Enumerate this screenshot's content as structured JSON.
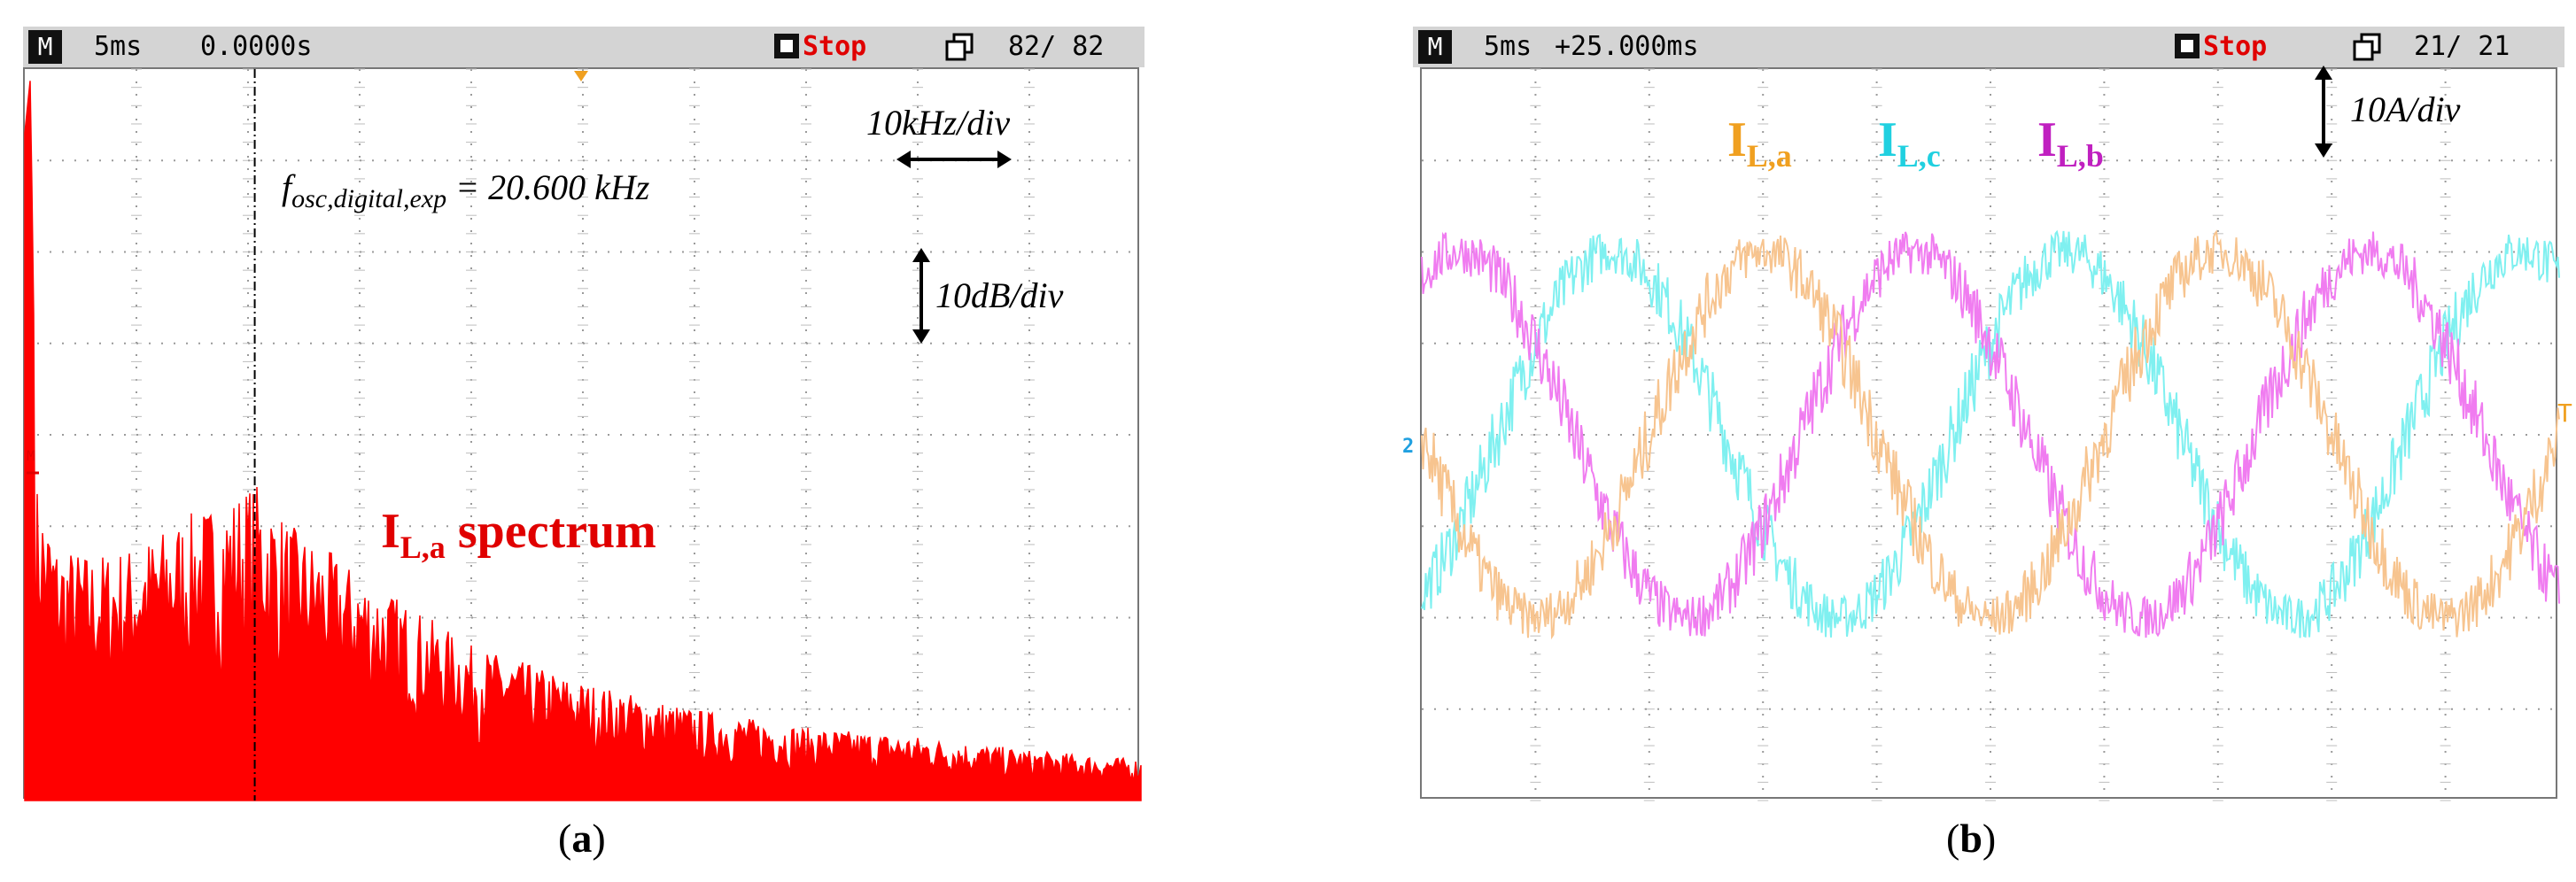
{
  "panel_a": {
    "status": {
      "m_label": "M",
      "timebase": "5ms",
      "time": "0.0000s",
      "stop": "Stop",
      "count": "82/ 82"
    },
    "scale_x": "10kHz/div",
    "scale_y": "10dB/div",
    "freq_prefix": "f",
    "freq_sub": "osc,digital,exp",
    "freq_value": "= 20.600 kHz",
    "label_main": "I",
    "label_sub": "L,a",
    "label_suffix": " spectrum",
    "caption_open": "(",
    "caption_letter": "a",
    "caption_close": ")"
  },
  "panel_b": {
    "status": {
      "m_label": "M",
      "timebase": "5ms",
      "time": "+25.000ms",
      "stop": "Stop",
      "count": "21/ 21"
    },
    "scale_y": "10A/div",
    "label_a_main": "I",
    "label_a_sub": "L,a",
    "label_c_main": "I",
    "label_c_sub": "L,c",
    "label_b_main": "I",
    "label_b_sub": "L,b",
    "ch_marker": "2",
    "trig_marker": "T",
    "caption_open": "(",
    "caption_letter": "b",
    "caption_close": ")"
  },
  "colors": {
    "spectrum": "#ff0000",
    "phase_a": "#f7c48f",
    "phase_b": "#f07cf0",
    "phase_c": "#7ff0f0",
    "label_a": "#f0a020",
    "label_b": "#c020c0",
    "label_c": "#20d0e0"
  },
  "chart_data": [
    {
      "type": "area",
      "grid": true,
      "x_divisions": 10,
      "y_divisions": 8,
      "x_scale_per_div_kHz": 10,
      "y_scale_per_div_dB": 10,
      "xlim_kHz": [
        0,
        100
      ],
      "marker_x_kHz": 20.6,
      "series": [
        {
          "envelope_x_kHz": [
            0,
            0.5,
            1,
            3,
            6,
            10,
            14,
            18,
            20.6,
            24,
            30,
            40,
            50,
            60,
            70,
            80,
            90,
            100
          ],
          "envelope_div": [
            7.3,
            7.9,
            3.5,
            2.8,
            2.7,
            2.8,
            3.1,
            3.3,
            3.5,
            3.0,
            2.5,
            1.7,
            1.3,
            1.0,
            0.8,
            0.7,
            0.55,
            0.45
          ]
        }
      ]
    },
    {
      "type": "line",
      "grid": true,
      "x_divisions": 10,
      "y_divisions": 8,
      "time_per_div_ms": 5,
      "y_scale_per_div_A": 10,
      "xlim_ms": [
        0,
        50
      ],
      "series": [
        {
          "frequency_Hz": 50,
          "amplitude_div": 2.0,
          "phase_deg": 0,
          "noise_div": 0.38
        },
        {
          "frequency_Hz": 50,
          "amplitude_div": 2.0,
          "phase_deg": -120,
          "noise_div": 0.38
        },
        {
          "frequency_Hz": 50,
          "amplitude_div": 2.0,
          "phase_deg": 120,
          "noise_div": 0.38
        }
      ]
    }
  ]
}
